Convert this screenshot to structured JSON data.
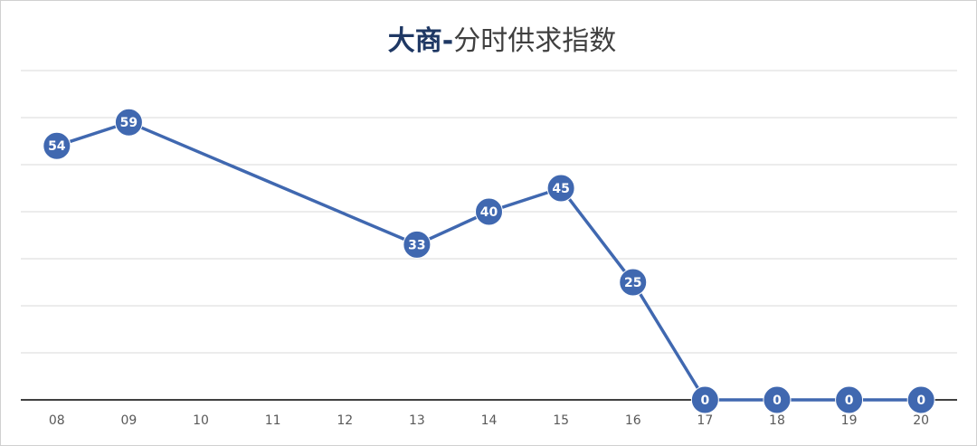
{
  "chart_data": {
    "type": "line",
    "title": [
      "大商-",
      "分时供求指数"
    ],
    "categories": [
      "08",
      "09",
      "10",
      "11",
      "12",
      "13",
      "14",
      "15",
      "16",
      "17",
      "18",
      "19",
      "20"
    ],
    "series": [
      {
        "color": "#4068b0",
        "x": [
          "08",
          "09",
          "13",
          "14",
          "15",
          "16",
          "17",
          "18",
          "19",
          "20"
        ],
        "values": [
          54,
          59,
          33,
          40,
          45,
          25,
          0,
          0,
          0,
          0
        ]
      }
    ],
    "ylim": [
      0,
      70
    ],
    "yticks": [
      0,
      10,
      20,
      30,
      40,
      50,
      60,
      70
    ],
    "grid": true,
    "show_data_labels": true
  }
}
